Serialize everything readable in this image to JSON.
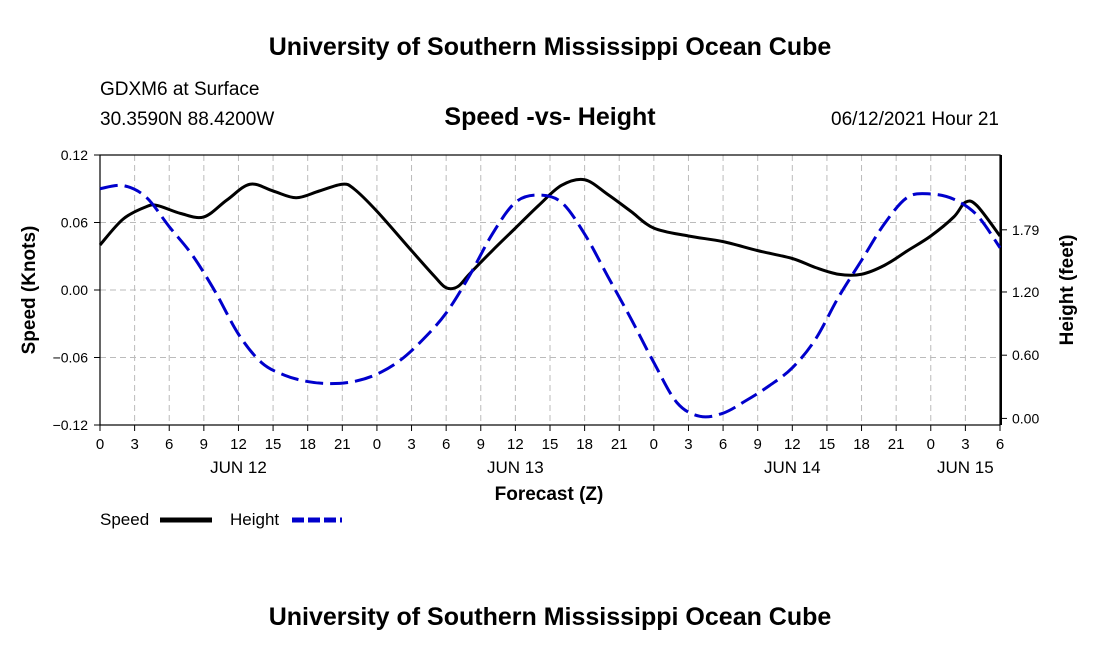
{
  "header": {
    "title_top": "University of Southern Mississippi Ocean Cube",
    "station": "GDXM6 at Surface",
    "coords": "30.3590N  88.4200W",
    "plot_title": "Speed -vs- Height",
    "datetime": "06/12/2021 Hour 21",
    "title_bottom": "University of Southern Mississippi Ocean Cube"
  },
  "legend": {
    "speed_label": "Speed",
    "height_label": "Height"
  },
  "colors": {
    "speed": "#000000",
    "height": "#0000cc",
    "grid": "#bbbbbb"
  },
  "chart_data": {
    "type": "line",
    "title": "Speed -vs- Height",
    "xlabel": "Forecast (Z)",
    "ylabel_left": "Speed (Knots)",
    "ylabel_right": "Height (feet)",
    "x_hours_range": [
      0,
      78
    ],
    "x_ticks": [
      0,
      3,
      6,
      9,
      12,
      15,
      18,
      21,
      24,
      27,
      30,
      33,
      36,
      39,
      42,
      45,
      48,
      51,
      54,
      57,
      60,
      63,
      66,
      69,
      72,
      75,
      78
    ],
    "x_tick_labels": [
      "0",
      "3",
      "6",
      "9",
      "12",
      "15",
      "18",
      "21",
      "0",
      "3",
      "6",
      "9",
      "12",
      "15",
      "18",
      "21",
      "0",
      "3",
      "6",
      "9",
      "12",
      "15",
      "18",
      "21",
      "0",
      "3",
      "6"
    ],
    "date_labels": [
      {
        "label": "JUN 12",
        "hour": 12
      },
      {
        "label": "JUN 13",
        "hour": 36
      },
      {
        "label": "JUN 14",
        "hour": 60
      },
      {
        "label": "JUN 15",
        "hour": 75
      }
    ],
    "ylim_left": [
      -0.12,
      0.12
    ],
    "y_ticks_left": [
      -0.12,
      -0.06,
      0.0,
      0.06,
      0.12
    ],
    "y_tick_labels_left": [
      "−0.12",
      "−0.06",
      "0.00",
      "0.06",
      "0.12"
    ],
    "ylim_right": [
      -0.0625,
      2.5
    ],
    "y_ticks_right": [
      0.0,
      0.6,
      1.2,
      1.79
    ],
    "y_tick_labels_right": [
      "0.00",
      "0.60",
      "1.20",
      "1.79"
    ],
    "grid": true,
    "series": [
      {
        "name": "Speed",
        "axis": "left",
        "style": "solid",
        "x": [
          0,
          2,
          4,
          5,
          7,
          9,
          11,
          13,
          15,
          17,
          19,
          21,
          22,
          24,
          27,
          29,
          30,
          31,
          32,
          34,
          36,
          38,
          40,
          42,
          44,
          46,
          48,
          51,
          54,
          57,
          60,
          62,
          64,
          66,
          68,
          70,
          72,
          74,
          75,
          76,
          78
        ],
        "values": [
          0.04,
          0.063,
          0.074,
          0.075,
          0.068,
          0.065,
          0.08,
          0.094,
          0.088,
          0.082,
          0.088,
          0.094,
          0.09,
          0.07,
          0.035,
          0.012,
          0.002,
          0.003,
          0.014,
          0.035,
          0.055,
          0.075,
          0.093,
          0.098,
          0.085,
          0.07,
          0.055,
          0.048,
          0.043,
          0.035,
          0.028,
          0.02,
          0.014,
          0.014,
          0.022,
          0.035,
          0.048,
          0.065,
          0.078,
          0.075,
          0.048
        ]
      },
      {
        "name": "Height",
        "axis": "right",
        "style": "dashed",
        "x": [
          0,
          2,
          4,
          6,
          8,
          10,
          12,
          14,
          16,
          18,
          20,
          22,
          24,
          26,
          28,
          30,
          32,
          34,
          36,
          38,
          40,
          42,
          44,
          46,
          48,
          50,
          52,
          54,
          56,
          58,
          60,
          62,
          64,
          66,
          68,
          70,
          72,
          74,
          76,
          78
        ],
        "values": [
          2.18,
          2.21,
          2.1,
          1.82,
          1.55,
          1.2,
          0.8,
          0.53,
          0.41,
          0.35,
          0.33,
          0.35,
          0.42,
          0.55,
          0.75,
          1.0,
          1.35,
          1.75,
          2.05,
          2.12,
          2.05,
          1.75,
          1.35,
          0.95,
          0.53,
          0.15,
          0.02,
          0.05,
          0.17,
          0.31,
          0.48,
          0.75,
          1.15,
          1.5,
          1.85,
          2.1,
          2.13,
          2.08,
          1.93,
          1.62
        ]
      }
    ]
  }
}
